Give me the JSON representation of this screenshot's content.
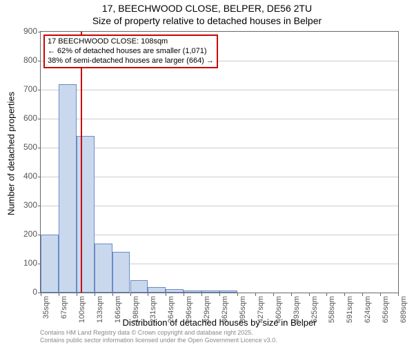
{
  "chart": {
    "type": "histogram",
    "title_line1": "17, BEECHWOOD CLOSE, BELPER, DE56 2TU",
    "title_line2": "Size of property relative to detached houses in Belper",
    "title_fontsize": 14,
    "xlabel": "Distribution of detached houses by size in Belper",
    "ylabel": "Number of detached properties",
    "label_fontsize": 13,
    "tick_fontsize": 12,
    "background_color": "#ffffff",
    "grid_color": "#cccccc",
    "axis_color": "#666666",
    "bar_fill": "#cad8ee",
    "bar_border": "#6a8bc3",
    "marker_color": "#cc0000",
    "ylim": [
      0,
      900
    ],
    "yticks": [
      0,
      100,
      200,
      300,
      400,
      500,
      600,
      700,
      800,
      900
    ],
    "xticks": [
      "35sqm",
      "67sqm",
      "100sqm",
      "133sqm",
      "166sqm",
      "198sqm",
      "231sqm",
      "264sqm",
      "296sqm",
      "329sqm",
      "362sqm",
      "395sqm",
      "427sqm",
      "460sqm",
      "493sqm",
      "525sqm",
      "558sqm",
      "591sqm",
      "624sqm",
      "656sqm",
      "689sqm"
    ],
    "bars": [
      {
        "i": 0,
        "value": 200
      },
      {
        "i": 1,
        "value": 720
      },
      {
        "i": 2,
        "value": 540
      },
      {
        "i": 3,
        "value": 170
      },
      {
        "i": 4,
        "value": 140
      },
      {
        "i": 5,
        "value": 42
      },
      {
        "i": 6,
        "value": 20
      },
      {
        "i": 7,
        "value": 13
      },
      {
        "i": 8,
        "value": 8
      },
      {
        "i": 9,
        "value": 7
      },
      {
        "i": 10,
        "value": 8
      },
      {
        "i": 11,
        "value": 0
      },
      {
        "i": 12,
        "value": 0
      },
      {
        "i": 13,
        "value": 0
      },
      {
        "i": 14,
        "value": 0
      },
      {
        "i": 15,
        "value": 0
      },
      {
        "i": 16,
        "value": 0
      },
      {
        "i": 17,
        "value": 0
      },
      {
        "i": 18,
        "value": 0
      },
      {
        "i": 19,
        "value": 0
      }
    ],
    "marker_x": 108,
    "annotation": {
      "line1": "17 BEECHWOOD CLOSE: 108sqm",
      "line2": "← 62% of detached houses are smaller (1,071)",
      "line3": "38% of semi-detached houses are larger (664) →",
      "fontsize": 11
    },
    "footer_line1": "Contains HM Land Registry data © Crown copyright and database right 2025.",
    "footer_line2": "Contains public sector information licensed under the Open Government Licence v3.0."
  }
}
